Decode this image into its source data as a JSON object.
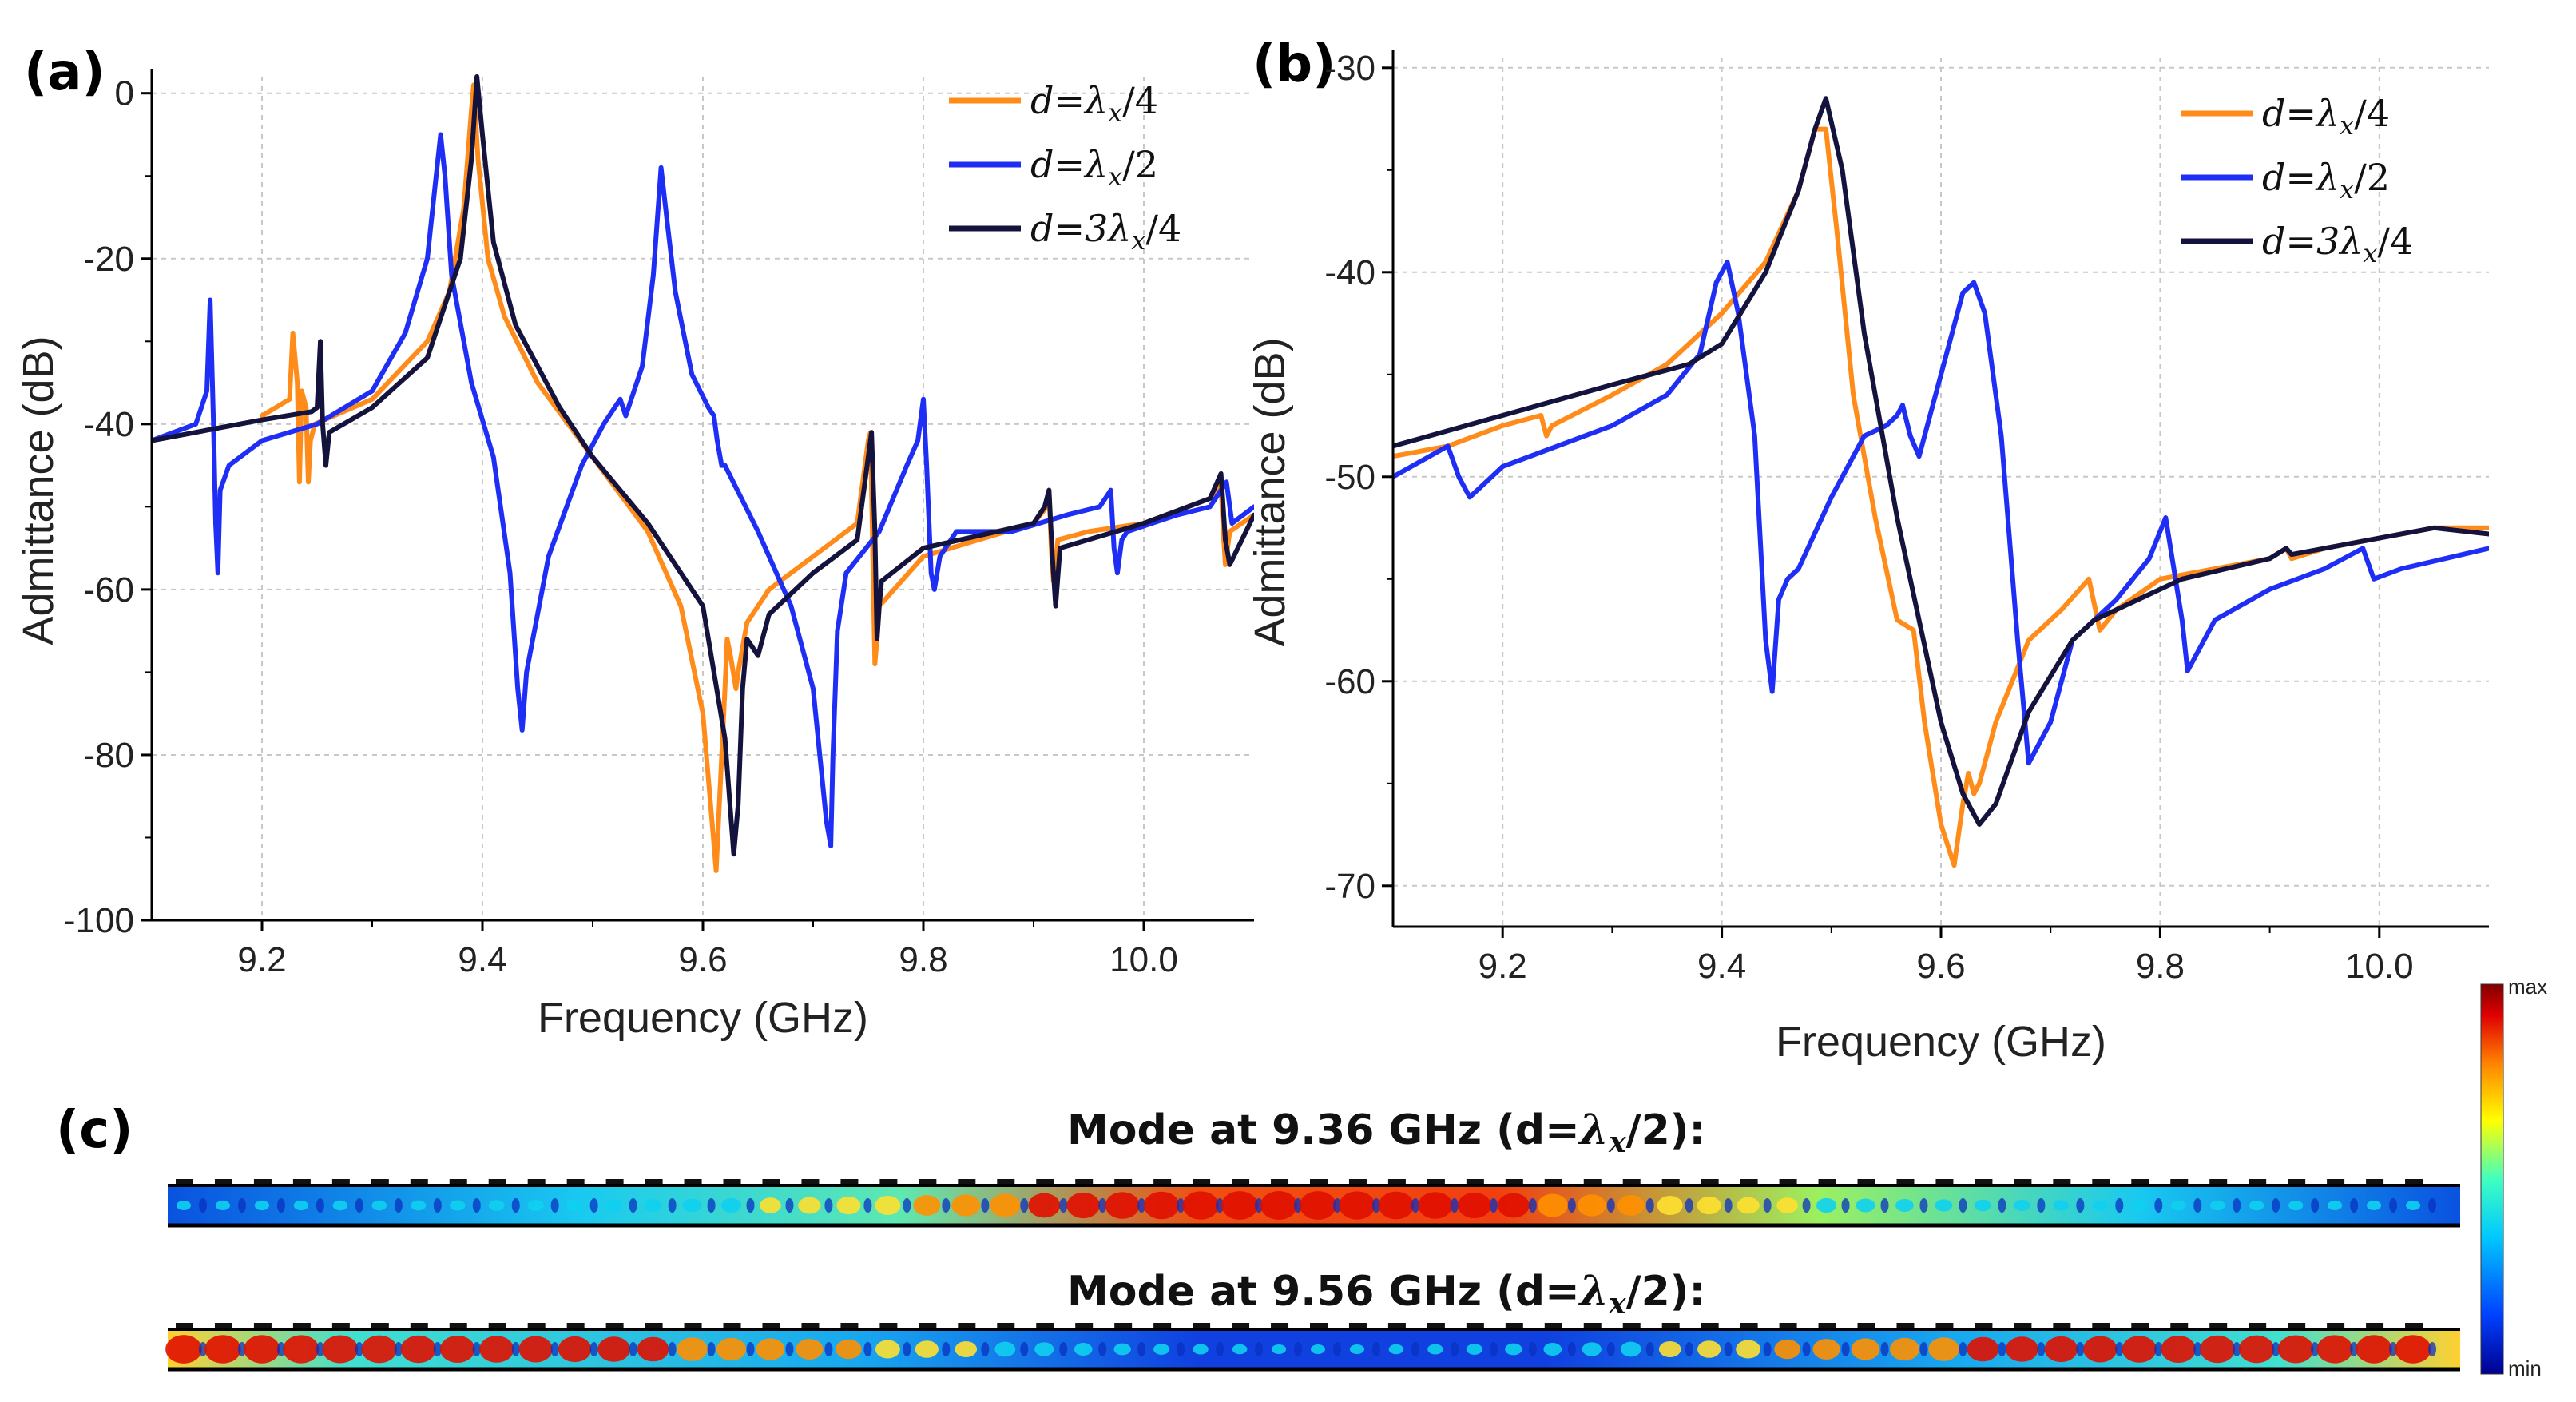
{
  "chart_data": [
    {
      "panel": "(a)",
      "type": "line",
      "xlabel": "Frequency (GHz)",
      "ylabel": "Admittance (dB)",
      "xlim": [
        9.1,
        10.1
      ],
      "ylim": [
        -100,
        2
      ],
      "xticks": [
        9.2,
        9.4,
        9.6,
        9.8,
        10.0
      ],
      "xtick_labels": [
        "9.2",
        "9.4",
        "9.6",
        "9.8",
        "10.0"
      ],
      "yticks": [
        0,
        -20,
        -40,
        -60,
        -80,
        -100
      ],
      "ytick_labels": [
        "0",
        "-20",
        "-40",
        "-60",
        "-80",
        "-100"
      ],
      "grid": true,
      "legend_position": "top-right",
      "series": [
        {
          "name": "d=λx/4",
          "legend": "d=λ",
          "sub": "x",
          "suffix": "/4",
          "color": "#ff8c1a",
          "x": [
            9.2,
            9.225,
            9.228,
            9.232,
            9.234,
            9.236,
            9.24,
            9.242,
            9.244,
            9.248,
            9.3,
            9.35,
            9.37,
            9.383,
            9.39,
            9.392,
            9.396,
            9.405,
            9.42,
            9.45,
            9.5,
            9.55,
            9.58,
            9.6,
            9.612,
            9.62,
            9.622,
            9.625,
            9.63,
            9.632,
            9.64,
            9.66,
            9.7,
            9.74,
            9.75,
            9.752,
            9.754,
            9.756,
            9.758,
            9.76,
            9.8,
            9.85,
            9.9,
            9.912,
            9.914,
            9.916,
            9.918,
            9.922,
            9.95,
            10.0,
            10.06,
            10.07,
            10.072,
            10.074,
            10.078,
            10.1
          ],
          "y": [
            -39,
            -37,
            -29,
            -35,
            -47,
            -36,
            -38,
            -47,
            -42,
            -40,
            -37,
            -30,
            -24,
            -14,
            -2,
            1,
            -8,
            -20,
            -27,
            -35,
            -44,
            -53,
            -62,
            -75,
            -94,
            -72,
            -66,
            -68,
            -72,
            -70,
            -64,
            -60,
            -56,
            -52,
            -42,
            -41,
            -55,
            -69,
            -66,
            -62,
            -56,
            -54,
            -52,
            -50,
            -48,
            -55,
            -59,
            -54,
            -53,
            -52,
            -49,
            -47,
            -53,
            -57,
            -53,
            -51
          ]
        },
        {
          "name": "d=λx/2",
          "legend": "d=λ",
          "sub": "x",
          "suffix": "/2",
          "color": "#1f2ef5",
          "x": [
            9.1,
            9.14,
            9.15,
            9.153,
            9.156,
            9.158,
            9.16,
            9.162,
            9.17,
            9.2,
            9.25,
            9.3,
            9.33,
            9.35,
            9.358,
            9.362,
            9.366,
            9.372,
            9.39,
            9.41,
            9.425,
            9.432,
            9.436,
            9.44,
            9.46,
            9.49,
            9.51,
            9.52,
            9.525,
            9.53,
            9.545,
            9.555,
            9.562,
            9.568,
            9.575,
            9.59,
            9.605,
            9.61,
            9.613,
            9.617,
            9.62,
            9.65,
            9.68,
            9.7,
            9.712,
            9.716,
            9.718,
            9.722,
            9.73,
            9.76,
            9.785,
            9.795,
            9.8,
            9.803,
            9.807,
            9.81,
            9.815,
            9.83,
            9.88,
            9.93,
            9.96,
            9.97,
            9.973,
            9.976,
            9.98,
            9.985,
            10.03,
            10.06,
            10.07,
            10.075,
            10.08,
            10.1
          ],
          "y": [
            -42,
            -40,
            -36,
            -25,
            -40,
            -52,
            -58,
            -48,
            -45,
            -42,
            -40,
            -36,
            -29,
            -20,
            -10,
            -5,
            -10,
            -22,
            -35,
            -44,
            -58,
            -72,
            -77,
            -70,
            -56,
            -45,
            -40,
            -38,
            -37,
            -39,
            -33,
            -22,
            -9,
            -16,
            -24,
            -34,
            -38,
            -39,
            -42,
            -45,
            -45,
            -53,
            -62,
            -72,
            -88,
            -91,
            -80,
            -65,
            -58,
            -53,
            -45,
            -42,
            -37,
            -45,
            -58,
            -60,
            -56,
            -53,
            -53,
            -51,
            -50,
            -48,
            -55,
            -58,
            -54,
            -53,
            -51,
            -50,
            -48,
            -47,
            -52,
            -50
          ]
        },
        {
          "name": "d=3λx/4",
          "legend": "d=3λ",
          "sub": "x",
          "suffix": "/4",
          "color": "#14133e",
          "x": [
            9.1,
            9.2,
            9.245,
            9.25,
            9.253,
            9.255,
            9.258,
            9.261,
            9.3,
            9.35,
            9.38,
            9.39,
            9.395,
            9.4,
            9.41,
            9.43,
            9.47,
            9.5,
            9.55,
            9.6,
            9.62,
            9.628,
            9.632,
            9.636,
            9.64,
            9.65,
            9.66,
            9.7,
            9.74,
            9.753,
            9.756,
            9.758,
            9.76,
            9.762,
            9.8,
            9.9,
            9.91,
            9.914,
            9.917,
            9.92,
            9.924,
            10.0,
            10.06,
            10.07,
            10.074,
            10.078,
            10.1
          ],
          "y": [
            -42,
            -39.5,
            -38.5,
            -38,
            -30,
            -40,
            -45,
            -41,
            -38,
            -32,
            -20,
            -8,
            2,
            -5,
            -18,
            -28,
            -38,
            -44,
            -52,
            -62,
            -78,
            -92,
            -86,
            -72,
            -66,
            -68,
            -63,
            -58,
            -54,
            -41,
            -53,
            -66,
            -62,
            -59,
            -55,
            -52,
            -50,
            -48,
            -56,
            -62,
            -55,
            -52,
            -49,
            -46,
            -54,
            -57,
            -51
          ]
        }
      ]
    },
    {
      "panel": "(b)",
      "type": "line",
      "xlabel": "Frequency (GHz)",
      "ylabel": "Admittance (dB)",
      "xlim": [
        9.1,
        10.1
      ],
      "ylim": [
        -72,
        -29.5
      ],
      "xticks": [
        9.2,
        9.4,
        9.6,
        9.8,
        10.0
      ],
      "xtick_labels": [
        "9.2",
        "9.4",
        "9.6",
        "9.8",
        "10.0"
      ],
      "yticks": [
        -30,
        -40,
        -50,
        -60,
        -70
      ],
      "ytick_labels": [
        "-30",
        "-40",
        "-50",
        "-60",
        "-70"
      ],
      "grid": true,
      "legend_position": "top-right",
      "series": [
        {
          "name": "d=λx/4",
          "legend": "d=λ",
          "sub": "x",
          "suffix": "/4",
          "color": "#ff8c1a",
          "x": [
            9.1,
            9.15,
            9.2,
            9.235,
            9.24,
            9.245,
            9.3,
            9.35,
            9.4,
            9.44,
            9.47,
            9.485,
            9.495,
            9.505,
            9.52,
            9.54,
            9.56,
            9.575,
            9.585,
            9.6,
            9.612,
            9.62,
            9.625,
            9.63,
            9.635,
            9.65,
            9.68,
            9.71,
            9.735,
            9.745,
            9.76,
            9.8,
            9.85,
            9.9,
            9.915,
            9.92,
            9.95,
            10.0,
            10.05,
            10.1
          ],
          "y": [
            -49,
            -48.5,
            -47.5,
            -47,
            -48,
            -47.5,
            -46,
            -44.5,
            -42,
            -39.5,
            -36,
            -33,
            -33,
            -38,
            -46,
            -52,
            -57,
            -57.5,
            -62,
            -67,
            -69,
            -66,
            -64.5,
            -65.5,
            -65,
            -62,
            -58,
            -56.5,
            -55,
            -57.5,
            -56.5,
            -55,
            -54.5,
            -54,
            -53.5,
            -54,
            -53.5,
            -53,
            -52.5,
            -52.5
          ]
        },
        {
          "name": "d=λx/2",
          "legend": "d=λ",
          "sub": "x",
          "suffix": "/2",
          "color": "#1f2ef5",
          "x": [
            9.1,
            9.15,
            9.16,
            9.17,
            9.2,
            9.3,
            9.35,
            9.38,
            9.395,
            9.405,
            9.415,
            9.43,
            9.44,
            9.446,
            9.452,
            9.46,
            9.47,
            9.5,
            9.53,
            9.55,
            9.56,
            9.565,
            9.572,
            9.58,
            9.59,
            9.605,
            9.62,
            9.63,
            9.64,
            9.655,
            9.67,
            9.68,
            9.69,
            9.7,
            9.72,
            9.76,
            9.79,
            9.805,
            9.82,
            9.825,
            9.85,
            9.9,
            9.95,
            9.985,
            9.995,
            10.02,
            10.1
          ],
          "y": [
            -50,
            -48.5,
            -50,
            -51,
            -49.5,
            -47.5,
            -46,
            -44,
            -40.5,
            -39.5,
            -42,
            -48,
            -58,
            -60.5,
            -56,
            -55,
            -54.5,
            -51,
            -48,
            -47.5,
            -47,
            -46.5,
            -48,
            -49,
            -47,
            -44,
            -41,
            -40.5,
            -42,
            -48,
            -58,
            -64,
            -63,
            -62,
            -58,
            -56,
            -54,
            -52,
            -57,
            -59.5,
            -57,
            -55.5,
            -54.5,
            -53.5,
            -55,
            -54.5,
            -53.5
          ]
        },
        {
          "name": "d=3λx/4",
          "legend": "d=3λ",
          "sub": "x",
          "suffix": "/4",
          "color": "#14133e",
          "x": [
            9.1,
            9.2,
            9.3,
            9.37,
            9.4,
            9.44,
            9.47,
            9.485,
            9.495,
            9.51,
            9.53,
            9.56,
            9.6,
            9.62,
            9.635,
            9.65,
            9.68,
            9.72,
            9.74,
            9.78,
            9.82,
            9.9,
            9.915,
            9.92,
            9.95,
            10.0,
            10.05,
            10.1
          ],
          "y": [
            -48.5,
            -47,
            -45.5,
            -44.5,
            -43.5,
            -40,
            -36,
            -33,
            -31.5,
            -35,
            -43,
            -52,
            -62,
            -65.5,
            -67,
            -66,
            -61.5,
            -58,
            -57,
            -56,
            -55,
            -54,
            -53.5,
            -53.8,
            -53.5,
            -53,
            -52.5,
            -52.8
          ]
        }
      ]
    }
  ],
  "panel_c": {
    "label": "(c)",
    "mode1_title_prefix": "Mode at 9.36 GHz (d=",
    "mode2_title_prefix": "Mode at 9.56 GHz (d=",
    "mode_title_lambda": "λ",
    "mode_title_sub": "x",
    "mode_title_suffix": "/2):",
    "colorbar_max": "max",
    "colorbar_min": "min",
    "colormap": [
      "#00008f",
      "#0040ff",
      "#00c8ff",
      "#40ffbf",
      "#ffff00",
      "#ff8000",
      "#e00000",
      "#800000"
    ]
  }
}
